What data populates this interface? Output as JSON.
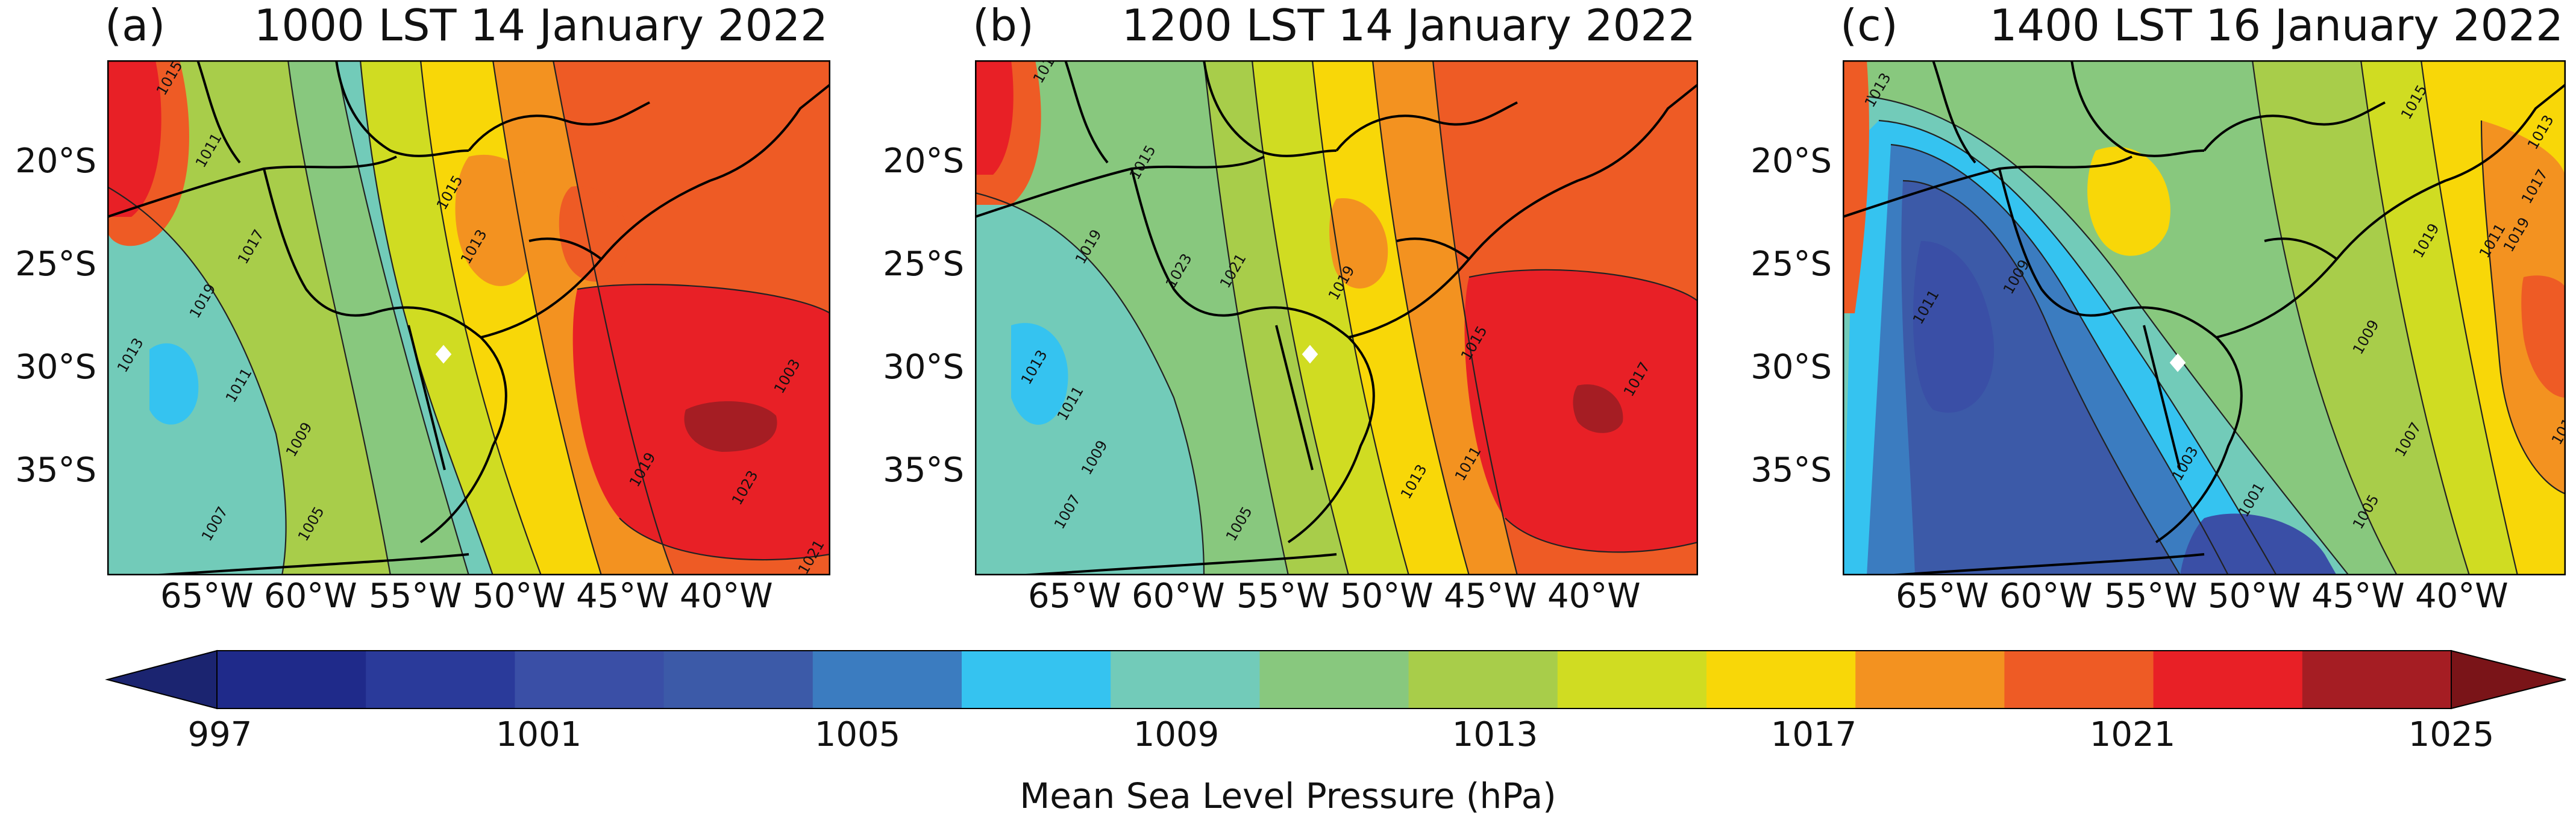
{
  "panels": [
    {
      "tag": "(a)",
      "title": "1000 LST 14 January 2022",
      "contour_labels": [
        "1015",
        "1017",
        "1019",
        "1013",
        "1011",
        "1009",
        "1007",
        "1005",
        "1003",
        "1023",
        "1021",
        "1019",
        "1015",
        "1013",
        "1011"
      ]
    },
    {
      "tag": "(b)",
      "title": "1200 LST 14 January 2022",
      "contour_labels": [
        "1017",
        "1019",
        "1015",
        "1013",
        "1011",
        "1009",
        "1007",
        "1005",
        "1023",
        "1021",
        "1019",
        "1017",
        "1013",
        "1011",
        "1015"
      ]
    },
    {
      "tag": "(c)",
      "title": "1400 LST 16 January 2022",
      "contour_labels": [
        "1013",
        "1015",
        "1017",
        "1019",
        "1011",
        "1009",
        "1007",
        "1005",
        "1003",
        "1001",
        "1009",
        "1011",
        "1013",
        "1017",
        "1019"
      ]
    }
  ],
  "lat_labels": [
    "20°S",
    "25°S",
    "30°S",
    "35°S"
  ],
  "lon_labels": [
    "65°W",
    "60°W",
    "55°W",
    "50°W",
    "45°W",
    "40°W"
  ],
  "colorbar": {
    "ticks": [
      "997",
      "1001",
      "1005",
      "1009",
      "1013",
      "1017",
      "1021",
      "1025"
    ],
    "label": "Mean Sea Level Pressure (hPa)",
    "levels": [
      997,
      999,
      1001,
      1003,
      1005,
      1007,
      1009,
      1011,
      1013,
      1015,
      1017,
      1019,
      1021,
      1023,
      1025
    ],
    "colors": [
      "#1f2a8a",
      "#2a3a9a",
      "#3a4fa6",
      "#3c5aa8",
      "#3b7cc0",
      "#35c3f0",
      "#72cbb9",
      "#88c87e",
      "#a8cd4a",
      "#d0dc22",
      "#f8d708",
      "#f39220",
      "#ee5b25",
      "#e82026",
      "#a51d23"
    ],
    "under_color": "#1b2470",
    "over_color": "#7a1418"
  }
}
